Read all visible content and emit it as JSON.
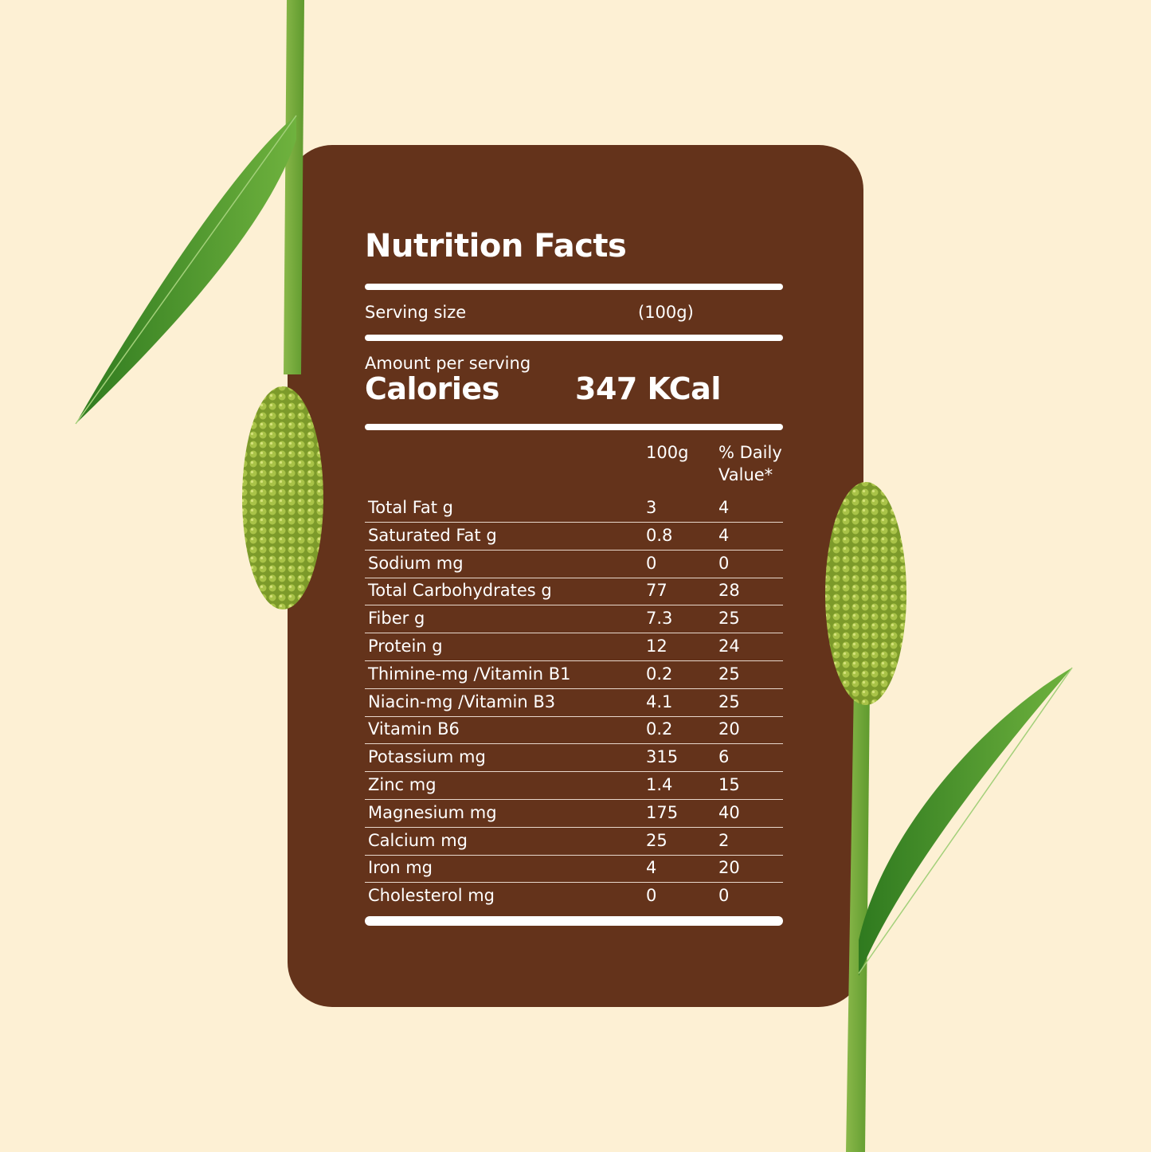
{
  "colors": {
    "background": "#fdf0d4",
    "card": "#64331b",
    "text": "#ffffff",
    "leaf": "#3f8f2a",
    "seed": "#8fae33"
  },
  "title": "Nutrition Facts",
  "serving": {
    "label": "Serving size",
    "value": "(100g)"
  },
  "calories": {
    "amount_label": "Amount per serving",
    "label": "Calories",
    "value": "347 KCal"
  },
  "table": {
    "headers": {
      "amount": "100g",
      "dv_line1": "% Daily",
      "dv_line2": "Value*"
    },
    "rows": [
      {
        "name": "Total Fat g",
        "amount": "3",
        "dv": "4"
      },
      {
        "name": "Saturated Fat g",
        "amount": "0.8",
        "dv": "4"
      },
      {
        "name": "Sodium mg",
        "amount": "0",
        "dv": "0"
      },
      {
        "name": "Total Carbohydrates g",
        "amount": "77",
        "dv": "28"
      },
      {
        "name": "Fiber g",
        "amount": "7.3",
        "dv": "25"
      },
      {
        "name": "Protein g",
        "amount": "12",
        "dv": "24"
      },
      {
        "name": "Thimine-mg /Vitamin B1",
        "amount": "0.2",
        "dv": "25"
      },
      {
        "name": "Niacin-mg /Vitamin B3",
        "amount": "4.1",
        "dv": "25"
      },
      {
        "name": "Vitamin B6",
        "amount": "0.2",
        "dv": "20"
      },
      {
        "name": "Potassium mg",
        "amount": "315",
        "dv": "6"
      },
      {
        "name": "Zinc mg",
        "amount": "1.4",
        "dv": "15"
      },
      {
        "name": "Magnesium mg",
        "amount": "175",
        "dv": "40"
      },
      {
        "name": "Calcium mg",
        "amount": "25",
        "dv": "2"
      },
      {
        "name": "Iron mg",
        "amount": "4",
        "dv": "20"
      },
      {
        "name": "Cholesterol mg",
        "amount": "0",
        "dv": "0"
      }
    ]
  }
}
